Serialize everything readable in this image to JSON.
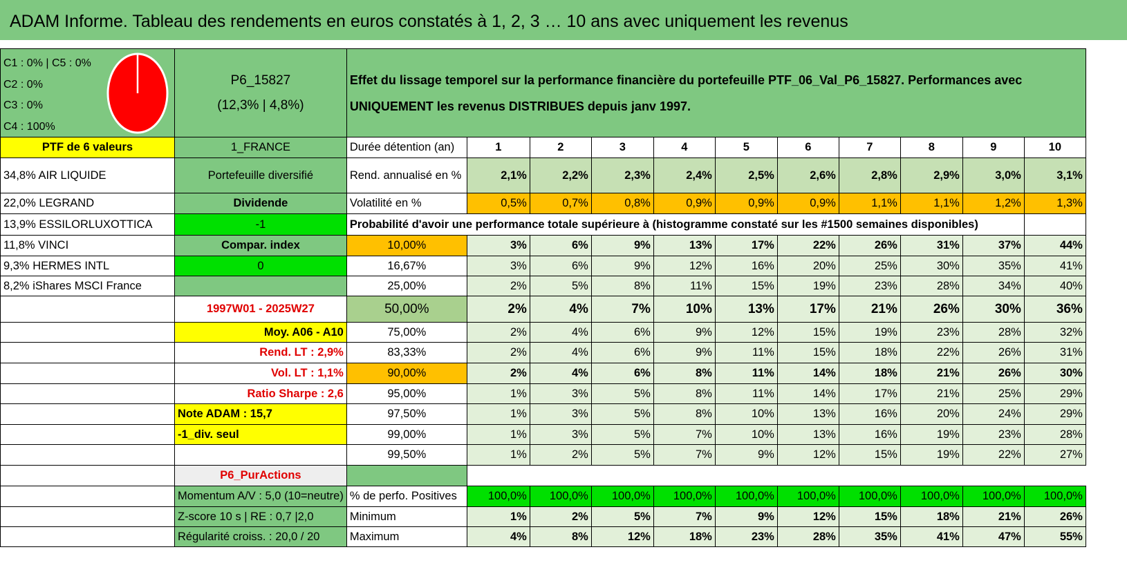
{
  "title": "ADAM Informe. Tableau des rendements en euros constatés à 1, 2, 3 … 10 ans avec uniquement les revenus",
  "classes": [
    "C1 : 0% | C5 : 0%",
    "C2 : 0%",
    "C3 : 0%",
    "C4 : 100%"
  ],
  "pie": {
    "fill_color": "#ff0000",
    "share_c4": 100
  },
  "portfolio": {
    "code": "P6_15827",
    "returns": "(12,3% | 4,8%)"
  },
  "description": "Effet du lissage temporel sur la performance financière du portefeuille PTF_06_Val_P6_15827. Performances avec UNIQUEMENT les revenus DISTRIBUES depuis janv 1997.",
  "left_col": {
    "ptf_count": "PTF de 6 valeurs",
    "holdings": [
      "34,8% AIR LIQUIDE",
      "22,0% LEGRAND",
      "13,9% ESSILORLUXOTTICA",
      "11,8% VINCI",
      "9,3% HERMES INTL",
      "8,2% iShares MSCI France"
    ]
  },
  "mid_col": {
    "country": "1_FRANCE",
    "type": "Portefeuille diversifié",
    "dividend_label": "Dividende",
    "dividend_value": "-1",
    "compar_label": "Compar. index",
    "compar_value": "0",
    "period": "1997W01 - 2025W27",
    "moy": "Moy. A06 - A10",
    "rend_lt": "Rend. LT : 2,9%",
    "vol_lt": "Vol. LT : 1,1%",
    "sharpe": "Ratio Sharpe : 2,6",
    "note": "Note ADAM : 15,7",
    "div_seul": "-1_div. seul",
    "pur_actions": "P6_PurActions",
    "momentum": "Momentum A/V : 5,0 (10=neutre)",
    "zscore": "Z-score 10 s | RE : 0,7 |2,0",
    "regularite": "Régularité croiss. : 20,0 / 20"
  },
  "table": {
    "duration_label": "Durée détention (an)",
    "years": [
      "1",
      "2",
      "3",
      "4",
      "5",
      "6",
      "7",
      "8",
      "9",
      "10"
    ],
    "rend_label": "Rend. annualisé en %",
    "rend": [
      "2,1%",
      "2,2%",
      "2,3%",
      "2,4%",
      "2,5%",
      "2,6%",
      "2,8%",
      "2,9%",
      "3,0%",
      "3,1%"
    ],
    "vol_label": "Volatilité en %",
    "vol": [
      "0,5%",
      "0,7%",
      "0,8%",
      "0,9%",
      "0,9%",
      "0,9%",
      "1,1%",
      "1,1%",
      "1,2%",
      "1,3%"
    ],
    "prob_title": "Probabilité d'avoir une performance totale supérieure à (histogramme constaté sur les #1500 semaines disponibles)",
    "prob_rows": [
      {
        "threshold": "10,00%",
        "values": [
          "3%",
          "6%",
          "9%",
          "13%",
          "17%",
          "22%",
          "26%",
          "31%",
          "37%",
          "44%"
        ]
      },
      {
        "threshold": "16,67%",
        "values": [
          "3%",
          "6%",
          "9%",
          "12%",
          "16%",
          "20%",
          "25%",
          "30%",
          "35%",
          "41%"
        ]
      },
      {
        "threshold": "25,00%",
        "values": [
          "2%",
          "5%",
          "8%",
          "11%",
          "15%",
          "19%",
          "23%",
          "28%",
          "34%",
          "40%"
        ]
      },
      {
        "threshold": "50,00%",
        "values": [
          "2%",
          "4%",
          "7%",
          "10%",
          "13%",
          "17%",
          "21%",
          "26%",
          "30%",
          "36%"
        ]
      },
      {
        "threshold": "75,00%",
        "values": [
          "2%",
          "4%",
          "6%",
          "9%",
          "12%",
          "15%",
          "19%",
          "23%",
          "28%",
          "32%"
        ]
      },
      {
        "threshold": "83,33%",
        "values": [
          "2%",
          "4%",
          "6%",
          "9%",
          "11%",
          "15%",
          "18%",
          "22%",
          "26%",
          "31%"
        ]
      },
      {
        "threshold": "90,00%",
        "values": [
          "2%",
          "4%",
          "6%",
          "8%",
          "11%",
          "14%",
          "18%",
          "21%",
          "26%",
          "30%"
        ]
      },
      {
        "threshold": "95,00%",
        "values": [
          "1%",
          "3%",
          "5%",
          "8%",
          "11%",
          "14%",
          "17%",
          "21%",
          "25%",
          "29%"
        ]
      },
      {
        "threshold": "97,50%",
        "values": [
          "1%",
          "3%",
          "5%",
          "8%",
          "10%",
          "13%",
          "16%",
          "20%",
          "24%",
          "29%"
        ]
      },
      {
        "threshold": "99,00%",
        "values": [
          "1%",
          "3%",
          "5%",
          "7%",
          "10%",
          "13%",
          "16%",
          "19%",
          "23%",
          "28%"
        ]
      },
      {
        "threshold": "99,50%",
        "values": [
          "1%",
          "2%",
          "5%",
          "7%",
          "9%",
          "12%",
          "15%",
          "19%",
          "22%",
          "27%"
        ]
      }
    ],
    "pos_label": "% de perfo. Positives",
    "pos": [
      "100,0%",
      "100,0%",
      "100,0%",
      "100,0%",
      "100,0%",
      "100,0%",
      "100,0%",
      "100,0%",
      "100,0%",
      "100,0%"
    ],
    "min_label": "Minimum",
    "min": [
      "1%",
      "2%",
      "5%",
      "7%",
      "9%",
      "12%",
      "15%",
      "18%",
      "21%",
      "26%"
    ],
    "max_label": "Maximum",
    "max": [
      "4%",
      "8%",
      "12%",
      "18%",
      "23%",
      "28%",
      "35%",
      "41%",
      "47%",
      "55%"
    ]
  }
}
